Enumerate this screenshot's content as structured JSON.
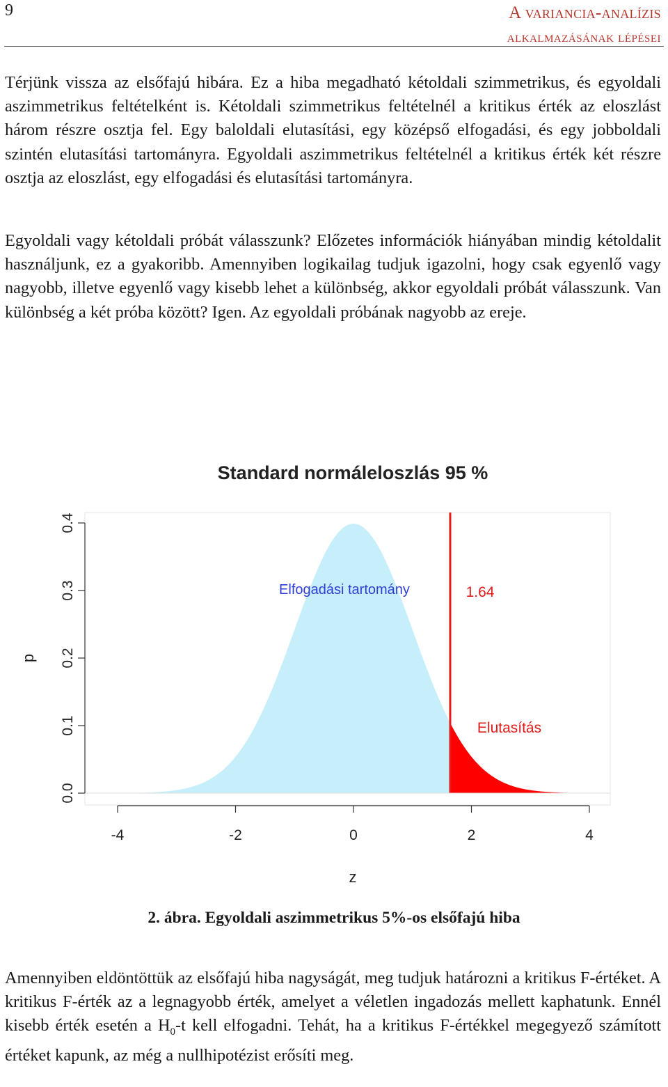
{
  "header": {
    "page_number": "9",
    "title_line1": "A variancia-analízis",
    "title_line2": "alkalmazásának lépései"
  },
  "paragraphs": [
    "Térjünk vissza az elsőfajú hibára. Ez a hiba megadható kétoldali szimmetrikus, és egyoldali aszimmetrikus feltételként is. Kétoldali szimmetrikus feltételnél a kritikus érték az eloszlást három részre osztja fel. Egy baloldali elutasítási, egy középső elfogadási, és egy jobboldali szintén elutasítási tartományra. Egyoldali aszimmetrikus feltételnél a kritikus érték két részre osztja az eloszlást, egy elfogadási és elutasítási tartományra.",
    "Egyoldali vagy kétoldali próbát válasszunk? Előzetes információk hiányában mindig kétoldalit használjunk, ez a gyakoribb. Amennyiben logikailag tudjuk igazolni, hogy csak egyenlő vagy nagyobb, illetve egyenlő vagy kisebb lehet a különbség, akkor egyoldali próbát válasszunk. Van különbség a két próba között? Igen. Az egyoldali próbának nagyobb az ereje."
  ],
  "caption": {
    "label": "2. ábra.",
    "text": "Egyoldali aszimmetrikus 5%-os elsőfajú hiba"
  },
  "closing_paragraph": {
    "part1": "Amennyiben eldöntöttük az elsőfajú hiba nagyságát, meg tudjuk határozni a kritikus F-értéket. A kritikus F-érték az a legnagyobb érték, amelyet a véletlen ingadozás mellett kaphatunk. Ennél kisebb érték esetén a H",
    "subscript": "0",
    "part2": "-t kell elfogadni. Tehát, ha a kritikus F-értékkel megegyező számított értéket kapunk, az még a nullhipotézist erősíti meg."
  },
  "chart_data": {
    "type": "area",
    "title": "Standard normáleloszlás 95 %",
    "xlabel": "z",
    "ylabel": "p",
    "xlim": [
      -4,
      4
    ],
    "ylim": [
      0,
      0.4
    ],
    "x_ticks": [
      "-4",
      "-2",
      "0",
      "2",
      "4"
    ],
    "y_ticks": [
      "0.0",
      "0.1",
      "0.2",
      "0.3",
      "0.4"
    ],
    "critical_value": 1.64,
    "critical_label": "1.64",
    "series": [
      {
        "name": "Elfogadási tartomány",
        "x_range": [
          -4,
          1.64
        ],
        "color": "#c6eefb"
      },
      {
        "name": "Elutasítás",
        "x_range": [
          1.64,
          4
        ],
        "color": "#ff0000"
      }
    ],
    "annotation_color_accept": "#2f3fd6",
    "annotation_color_reject": "#e21b1b",
    "critical_line_color": "#e21b1b"
  }
}
